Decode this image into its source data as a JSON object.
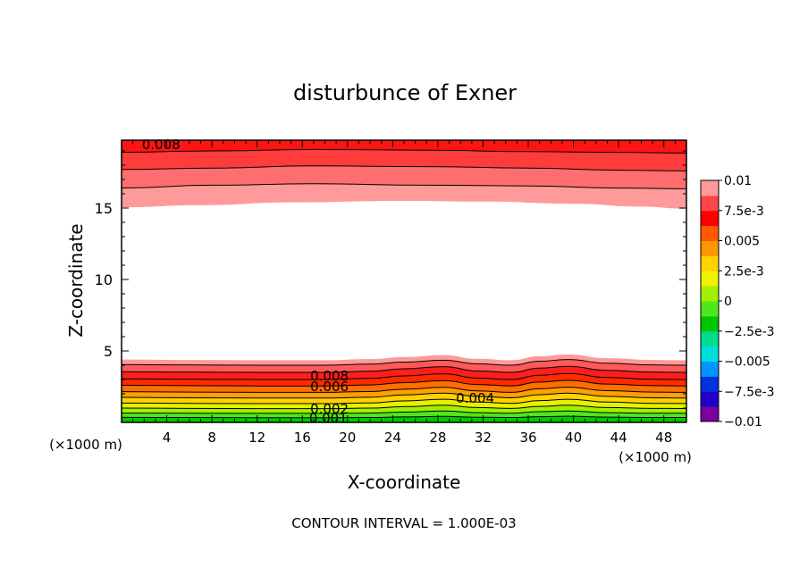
{
  "chart_data": {
    "type": "contour",
    "title": "disturbunce of Exner",
    "xlabel": "X-coordinate",
    "ylabel": "Z-coordinate",
    "x_unit_left": "(×1000 m)",
    "x_unit_right": "(×1000 m)",
    "xlim": [
      0,
      50
    ],
    "ylim": [
      0,
      19.75
    ],
    "x_ticks": [
      4,
      8,
      12,
      16,
      20,
      24,
      28,
      32,
      36,
      40,
      44,
      48
    ],
    "x_tick_labels": [
      "4",
      "8",
      "12",
      "16",
      "20",
      "24",
      "28",
      "32",
      "36",
      "40",
      "44",
      "48"
    ],
    "y_ticks": [
      5,
      10,
      15
    ],
    "y_tick_labels": [
      "5",
      "10",
      "15"
    ],
    "footer": "CONTOUR INTERVAL = 1.000E-03",
    "contour_interval": 0.001,
    "colorbar": {
      "levels": [
        -0.01,
        -0.0075,
        -0.005,
        -0.0025,
        0,
        0.0025,
        0.005,
        0.0075,
        0.01
      ],
      "tick_labels": [
        "0.01",
        "7.5e-3",
        "0.005",
        "2.5e-3",
        "0",
        "−2.5e-3",
        "−0.005",
        "−7.5e-3",
        "−0.01"
      ],
      "colors": [
        "#7d00a0",
        "#2000c8",
        "#0032e0",
        "#0096ff",
        "#00dcdc",
        "#00dc8c",
        "#00c800",
        "#50e61e",
        "#a0f000",
        "#f0f000",
        "#ffd200",
        "#ff9600",
        "#ff5a00",
        "#ff0000",
        "#ff4646",
        "#ff9a9a"
      ]
    },
    "upper_band": {
      "base_z": [
        15.05,
        15.2,
        15.4,
        15.5,
        15.45,
        15.3,
        15.1,
        14.95
      ],
      "base_x": [
        0,
        7,
        15,
        25,
        32,
        40,
        46,
        50
      ],
      "layers": [
        {
          "value": 0.008,
          "top_z": [
            16.4,
            16.6,
            16.7,
            16.6,
            16.55,
            16.4,
            16.35
          ]
        },
        {
          "value": 0.009,
          "top_z": [
            17.7,
            17.8,
            17.95,
            17.9,
            17.8,
            17.65,
            17.6
          ]
        },
        {
          "value": 0.01,
          "top_z": [
            18.9,
            19.0,
            19.1,
            19.05,
            18.95,
            18.9,
            18.85
          ]
        },
        {
          "value": 0.011,
          "top_z": [
            19.75,
            19.75,
            19.75,
            19.75,
            19.75,
            19.75,
            19.75
          ]
        }
      ],
      "layer_x": [
        0,
        8,
        17,
        27,
        36,
        44,
        50
      ]
    },
    "lower_band": {
      "x": [
        0,
        6,
        12,
        18,
        22,
        25,
        28.5,
        31.5,
        34.5,
        37,
        39.5,
        43,
        47,
        50
      ],
      "levels": [
        {
          "value": 0.0,
          "z": [
            0.35,
            0.34,
            0.33,
            0.33,
            0.34,
            0.38,
            0.42,
            0.36,
            0.34,
            0.4,
            0.43,
            0.37,
            0.34,
            0.34
          ]
        },
        {
          "value": 0.001,
          "z": [
            0.65,
            0.64,
            0.63,
            0.63,
            0.65,
            0.72,
            0.8,
            0.68,
            0.64,
            0.75,
            0.8,
            0.68,
            0.64,
            0.64
          ]
        },
        {
          "value": 0.002,
          "z": [
            1.0,
            0.98,
            0.96,
            0.96,
            1.0,
            1.1,
            1.2,
            1.04,
            0.98,
            1.12,
            1.2,
            1.04,
            0.98,
            0.97
          ]
        },
        {
          "value": 0.003,
          "z": [
            1.35,
            1.33,
            1.31,
            1.31,
            1.36,
            1.5,
            1.62,
            1.42,
            1.33,
            1.52,
            1.62,
            1.42,
            1.33,
            1.32
          ]
        },
        {
          "value": 0.004,
          "z": [
            1.75,
            1.72,
            1.7,
            1.7,
            1.76,
            1.92,
            2.05,
            1.82,
            1.72,
            1.94,
            2.05,
            1.82,
            1.72,
            1.7
          ]
        },
        {
          "value": 0.005,
          "z": [
            2.15,
            2.12,
            2.1,
            2.1,
            2.16,
            2.32,
            2.45,
            2.2,
            2.1,
            2.35,
            2.46,
            2.22,
            2.12,
            2.1
          ]
        },
        {
          "value": 0.006,
          "z": [
            2.6,
            2.57,
            2.55,
            2.55,
            2.62,
            2.78,
            2.92,
            2.65,
            2.55,
            2.82,
            2.94,
            2.68,
            2.57,
            2.55
          ]
        },
        {
          "value": 0.007,
          "z": [
            3.05,
            3.02,
            3.0,
            3.0,
            3.08,
            3.25,
            3.4,
            3.1,
            3.0,
            3.3,
            3.42,
            3.14,
            3.02,
            3.0
          ]
        },
        {
          "value": 0.008,
          "z": [
            3.55,
            3.52,
            3.5,
            3.5,
            3.58,
            3.75,
            3.9,
            3.6,
            3.5,
            3.8,
            3.92,
            3.64,
            3.52,
            3.5
          ]
        },
        {
          "value": 0.009,
          "z": [
            4.05,
            4.02,
            4.0,
            4.0,
            4.08,
            4.22,
            4.35,
            4.1,
            4.0,
            4.28,
            4.4,
            4.14,
            4.02,
            4.0
          ]
        }
      ]
    },
    "contour_labels": [
      {
        "text": "0.008",
        "x": 3.5,
        "z": 19.5
      },
      {
        "text": "0.008",
        "x": 18.4,
        "z": 3.3
      },
      {
        "text": "0.006",
        "x": 18.4,
        "z": 2.55
      },
      {
        "text": "0.004",
        "x": 31.3,
        "z": 1.75
      },
      {
        "text": "0.002",
        "x": 18.4,
        "z": 1.0
      },
      {
        "text": "0.001",
        "x": 18.3,
        "z": 0.35
      }
    ]
  }
}
